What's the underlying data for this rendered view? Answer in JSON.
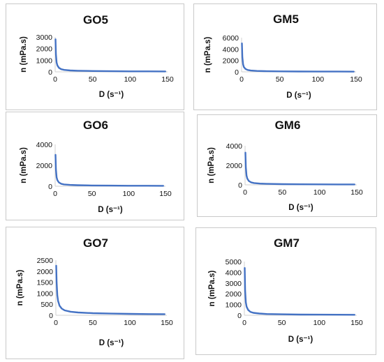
{
  "chart_data": [
    {
      "type": "line",
      "title": "GO5",
      "xlabel": "D (s⁻¹)",
      "ylabel": "n (mPa.s)",
      "xlim": [
        0,
        150
      ],
      "ylim": [
        0,
        3000
      ],
      "xticks": [
        "0",
        "50",
        "100",
        "150"
      ],
      "yticks": [
        "0",
        "1000",
        "2000",
        "3000"
      ],
      "color": "#4472C4",
      "grid": false,
      "series": [
        {
          "x": [
            0.5,
            1,
            2,
            3,
            5,
            8,
            12,
            20,
            30,
            50,
            75,
            100,
            125,
            147
          ],
          "y": [
            2800,
            1500,
            800,
            550,
            350,
            230,
            170,
            120,
            95,
            70,
            55,
            45,
            40,
            35
          ]
        }
      ]
    },
    {
      "type": "line",
      "title": "GM5",
      "xlabel": "D (s⁻¹)",
      "ylabel": "n (mPa.s)",
      "xlim": [
        0,
        150
      ],
      "ylim": [
        0,
        6000
      ],
      "xticks": [
        "0",
        "50",
        "100",
        "150"
      ],
      "yticks": [
        "0",
        "2000",
        "4000",
        "6000"
      ],
      "color": "#4472C4",
      "grid": false,
      "series": [
        {
          "x": [
            0.5,
            1,
            2,
            3,
            5,
            8,
            12,
            20,
            30,
            50,
            75,
            100,
            125,
            147
          ],
          "y": [
            5000,
            2600,
            1300,
            850,
            520,
            330,
            230,
            160,
            120,
            85,
            65,
            55,
            48,
            42
          ]
        }
      ]
    },
    {
      "type": "line",
      "title": "GO6",
      "xlabel": "D (s⁻¹)",
      "ylabel": "n (mPa.s)",
      "xlim": [
        0,
        150
      ],
      "ylim": [
        0,
        4000
      ],
      "xticks": [
        "0",
        "50",
        "100",
        "150"
      ],
      "yticks": [
        "0",
        "2000",
        "4000"
      ],
      "color": "#4472C4",
      "grid": false,
      "series": [
        {
          "x": [
            0.5,
            1,
            2,
            3,
            5,
            8,
            12,
            20,
            30,
            50,
            75,
            100,
            125,
            147
          ],
          "y": [
            3000,
            1600,
            850,
            580,
            370,
            240,
            175,
            125,
            100,
            75,
            60,
            50,
            44,
            40
          ]
        }
      ]
    },
    {
      "type": "line",
      "title": "GM6",
      "xlabel": "D (s⁻¹)",
      "ylabel": "n (mPa.s)",
      "xlim": [
        0,
        150
      ],
      "ylim": [
        0,
        4000
      ],
      "xticks": [
        "0",
        "50",
        "100",
        "150"
      ],
      "yticks": [
        "0",
        "2000",
        "4000"
      ],
      "color": "#4472C4",
      "grid": false,
      "series": [
        {
          "x": [
            0.5,
            1,
            2,
            3,
            5,
            8,
            12,
            20,
            30,
            50,
            75,
            100,
            125,
            147
          ],
          "y": [
            3300,
            1800,
            950,
            640,
            400,
            260,
            185,
            130,
            100,
            75,
            60,
            50,
            44,
            40
          ]
        }
      ]
    },
    {
      "type": "line",
      "title": "GO7",
      "xlabel": "D (s⁻¹)",
      "ylabel": "n (mPa.s)",
      "xlim": [
        0,
        150
      ],
      "ylim": [
        0,
        2500
      ],
      "xticks": [
        "0",
        "50",
        "100",
        "150"
      ],
      "yticks": [
        "0",
        "500",
        "1000",
        "1500",
        "2000",
        "2500"
      ],
      "color": "#4472C4",
      "grid": false,
      "series": [
        {
          "x": [
            0.5,
            1,
            2,
            3,
            5,
            8,
            12,
            20,
            30,
            50,
            75,
            100,
            125,
            147
          ],
          "y": [
            2250,
            1500,
            900,
            650,
            430,
            300,
            220,
            160,
            125,
            95,
            75,
            62,
            55,
            50
          ]
        }
      ]
    },
    {
      "type": "line",
      "title": "GM7",
      "xlabel": "D (s⁻¹)",
      "ylabel": "n (mPa.s)",
      "xlim": [
        0,
        150
      ],
      "ylim": [
        0,
        5000
      ],
      "xticks": [
        "0",
        "50",
        "100",
        "150"
      ],
      "yticks": [
        "0",
        "1000",
        "2000",
        "3000",
        "4000",
        "5000"
      ],
      "color": "#4472C4",
      "grid": false,
      "series": [
        {
          "x": [
            0.5,
            1,
            2,
            3,
            5,
            8,
            12,
            20,
            30,
            50,
            75,
            100,
            125,
            147
          ],
          "y": [
            4400,
            2300,
            1200,
            800,
            500,
            320,
            230,
            160,
            120,
            88,
            68,
            58,
            50,
            45
          ]
        }
      ]
    }
  ]
}
